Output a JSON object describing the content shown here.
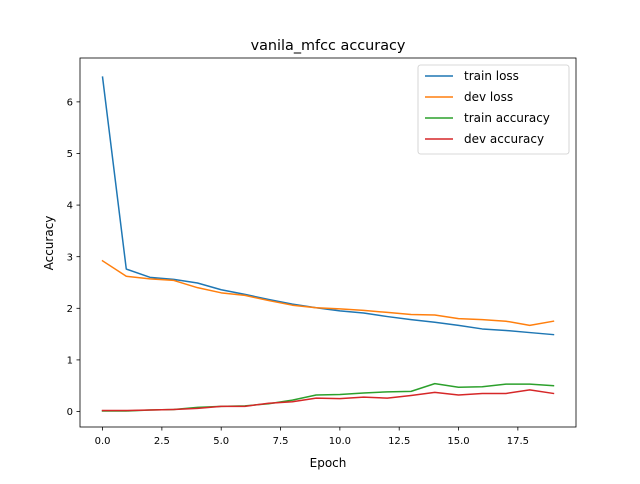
{
  "chart_data": {
    "type": "line",
    "title": "vanila_mfcc accuracy",
    "xlabel": "Epoch",
    "ylabel": "Accuracy",
    "xlim": [
      -0.95,
      19.95
    ],
    "ylim": [
      -0.3,
      6.85
    ],
    "xticks": [
      0,
      2.5,
      5,
      7.5,
      10,
      12.5,
      15,
      17.5
    ],
    "xtick_labels": [
      "0.0",
      "2.5",
      "5.0",
      "7.5",
      "10.0",
      "12.5",
      "15.0",
      "17.5"
    ],
    "yticks": [
      0,
      1,
      2,
      3,
      4,
      5,
      6
    ],
    "ytick_labels": [
      "0",
      "1",
      "2",
      "3",
      "4",
      "5",
      "6"
    ],
    "grid": false,
    "legend_position": "top-right",
    "x": [
      0,
      1,
      2,
      3,
      4,
      5,
      6,
      7,
      8,
      9,
      10,
      11,
      12,
      13,
      14,
      15,
      16,
      17,
      18,
      19
    ],
    "series": [
      {
        "name": "train loss",
        "color": "#1f77b4",
        "values": [
          6.48,
          2.76,
          2.6,
          2.56,
          2.49,
          2.36,
          2.27,
          2.17,
          2.08,
          2.01,
          1.95,
          1.91,
          1.84,
          1.78,
          1.73,
          1.67,
          1.6,
          1.57,
          1.53,
          1.49
        ]
      },
      {
        "name": "dev loss",
        "color": "#ff7f0e",
        "values": [
          2.92,
          2.62,
          2.57,
          2.54,
          2.4,
          2.3,
          2.25,
          2.15,
          2.06,
          2.01,
          1.99,
          1.96,
          1.92,
          1.88,
          1.87,
          1.8,
          1.78,
          1.75,
          1.67,
          1.75
        ]
      },
      {
        "name": "train accuracy",
        "color": "#2ca02c",
        "values": [
          0.01,
          0.01,
          0.03,
          0.04,
          0.08,
          0.1,
          0.11,
          0.15,
          0.22,
          0.32,
          0.33,
          0.36,
          0.38,
          0.39,
          0.54,
          0.47,
          0.48,
          0.53,
          0.53,
          0.5
        ]
      },
      {
        "name": "dev accuracy",
        "color": "#d62728",
        "values": [
          0.02,
          0.02,
          0.03,
          0.04,
          0.06,
          0.1,
          0.1,
          0.16,
          0.19,
          0.26,
          0.25,
          0.28,
          0.26,
          0.31,
          0.37,
          0.32,
          0.35,
          0.35,
          0.42,
          0.35
        ]
      }
    ]
  }
}
